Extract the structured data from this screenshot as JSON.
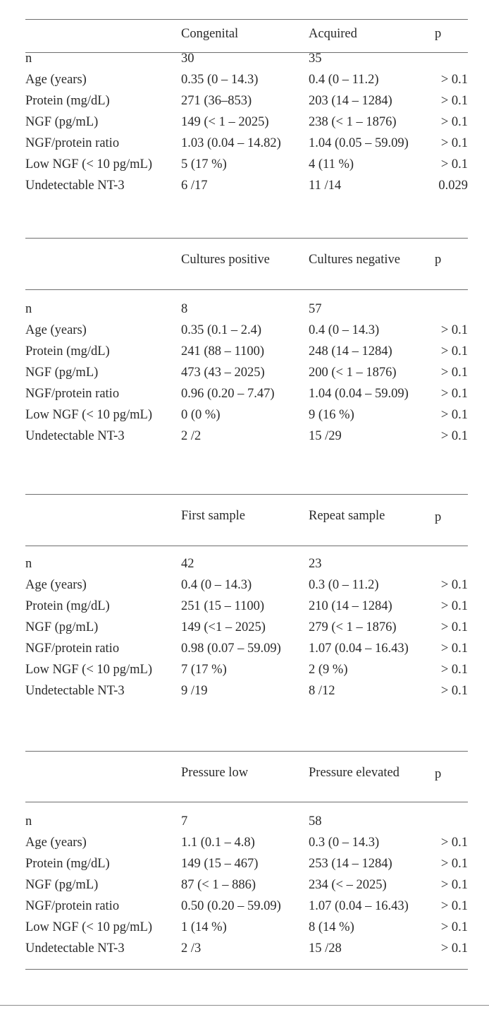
{
  "sections": [
    {
      "headers": [
        "Congenital",
        "Acquired",
        "p"
      ],
      "rows": [
        [
          "n",
          "30",
          "35",
          ""
        ],
        [
          "Age (years)",
          "0.35 (0 – 14.3)",
          "0.4 (0 – 11.2)",
          "> 0.1"
        ],
        [
          "Protein (mg/dL)",
          "271 (36–853)",
          "203 (14 – 1284)",
          "> 0.1"
        ],
        [
          "NGF (pg/mL)",
          "149 (< 1 – 2025)",
          "238 (< 1 – 1876)",
          "> 0.1"
        ],
        [
          "NGF/protein ratio",
          "1.03 (0.04 – 14.82)",
          "1.04 (0.05 – 59.09)",
          "> 0.1"
        ],
        [
          "Low NGF (< 10 pg/mL)",
          "5 (17 %)",
          "4 (11 %)",
          "> 0.1"
        ],
        [
          "Undetectable NT-3",
          "6 /17",
          "11 /14",
          "0.029"
        ]
      ]
    },
    {
      "headers": [
        "Cultures positive",
        "Cultures negative",
        "p"
      ],
      "rows": [
        [
          "n",
          "8",
          "57",
          ""
        ],
        [
          "Age (years)",
          "0.35 (0.1 – 2.4)",
          "0.4 (0 – 14.3)",
          "> 0.1"
        ],
        [
          "Protein (mg/dL)",
          "241 (88 – 1100)",
          "248 (14 – 1284)",
          "> 0.1"
        ],
        [
          "NGF (pg/mL)",
          "473 (43 – 2025)",
          "200 (< 1 – 1876)",
          "> 0.1"
        ],
        [
          "NGF/protein ratio",
          "0.96 (0.20 – 7.47)",
          "1.04 (0.04 – 59.09)",
          "> 0.1"
        ],
        [
          "Low NGF (< 10 pg/mL)",
          "0 (0 %)",
          "9 (16 %)",
          "> 0.1"
        ],
        [
          "Undetectable NT-3",
          "2 /2",
          "15 /29",
          "> 0.1"
        ]
      ]
    },
    {
      "headers": [
        "First sample",
        "Repeat sample",
        "p"
      ],
      "rows": [
        [
          "n",
          "42",
          "23",
          ""
        ],
        [
          "Age (years)",
          "0.4 (0 – 14.3)",
          "0.3 (0 – 11.2)",
          "> 0.1"
        ],
        [
          "Protein (mg/dL)",
          "251 (15 – 1100)",
          "210 (14 – 1284)",
          "> 0.1"
        ],
        [
          "NGF (pg/mL)",
          "149 (<1 – 2025)",
          "279 (< 1 – 1876)",
          "> 0.1"
        ],
        [
          "NGF/protein ratio",
          "0.98 (0.07 – 59.09)",
          "1.07 (0.04 – 16.43)",
          "> 0.1"
        ],
        [
          "Low NGF (< 10 pg/mL)",
          "7 (17 %)",
          "2 (9 %)",
          "> 0.1"
        ],
        [
          "Undetectable NT-3",
          "9 /19",
          "8 /12",
          "> 0.1"
        ]
      ]
    },
    {
      "headers": [
        "Pressure low",
        "Pressure elevated",
        "p"
      ],
      "rows": [
        [
          "n",
          "7",
          "58",
          ""
        ],
        [
          "Age (years)",
          "1.1 (0.1 – 4.8)",
          "0.3 (0 – 14.3)",
          "> 0.1"
        ],
        [
          "Protein (mg/dL)",
          "149 (15 – 467)",
          "253 (14 – 1284)",
          "> 0.1"
        ],
        [
          "NGF (pg/mL)",
          "87 (< 1 – 886)",
          "234 (< – 2025)",
          "> 0.1"
        ],
        [
          "NGF/protein ratio",
          "0.50 (0.20 – 59.09)",
          "1.07 (0.04 – 16.43)",
          "> 0.1"
        ],
        [
          "Low NGF (< 10 pg/mL)",
          "1 (14 %)",
          "8 (14 %)",
          "> 0.1"
        ],
        [
          "Undetectable NT-3",
          "2 /3",
          "15 /28",
          "> 0.1"
        ]
      ]
    }
  ]
}
